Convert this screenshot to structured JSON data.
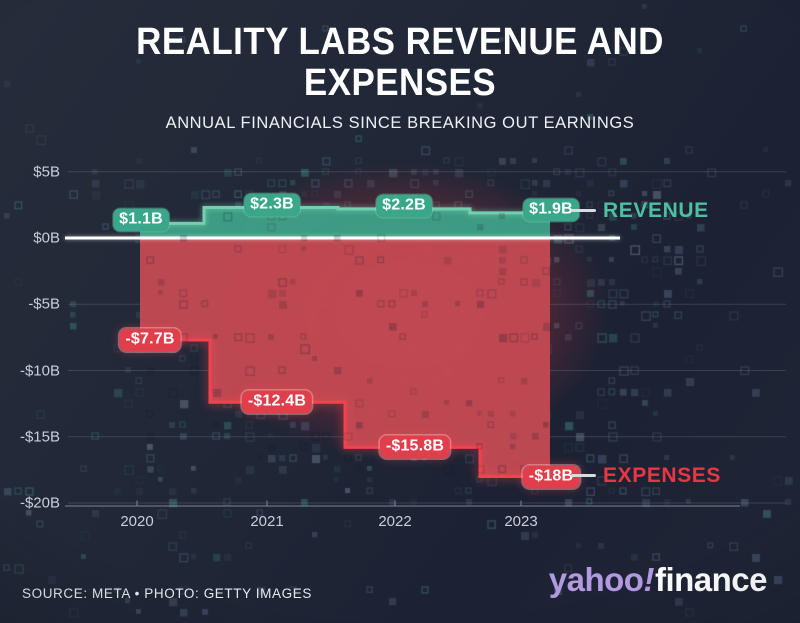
{
  "header": {
    "title_line1": "REALITY LABS REVENUE AND",
    "title_line2": "EXPENSES",
    "subtitle": "ANNUAL FINANCIALS SINCE BREAKING OUT EARNINGS"
  },
  "chart_data": {
    "type": "area",
    "variant": "step",
    "title": "REALITY LABS REVENUE AND EXPENSES",
    "subtitle": "ANNUAL FINANCIALS SINCE BREAKING OUT EARNINGS",
    "categories": [
      "2020",
      "2021",
      "2022",
      "2023"
    ],
    "series": [
      {
        "name": "REVENUE",
        "values": [
          1.1,
          2.3,
          2.2,
          1.9
        ],
        "point_labels": [
          "$1.1B",
          "$2.3B",
          "$2.2B",
          "$1.9B"
        ],
        "fill_color": "#3f9f86",
        "edge_color": "#74cfae",
        "label_bg_color": "#3aa78b",
        "name_color": "#4cc0a0"
      },
      {
        "name": "EXPENSES",
        "values": [
          -7.7,
          -12.4,
          -15.8,
          -18.0
        ],
        "point_labels": [
          "-$7.7B",
          "-$12.4B",
          "-$15.8B",
          "-$18B"
        ],
        "fill_color": "#c34a53",
        "edge_color": "#f3424e",
        "label_bg_color": "#e13e4b",
        "name_color": "#ea3642"
      }
    ],
    "y_tick_labels": [
      "$5B",
      "$0B",
      "-$5B",
      "-$10B",
      "-$15B",
      "-$20B"
    ],
    "y_tick_values": [
      5,
      0,
      -5,
      -10,
      -15,
      -20
    ],
    "ylim": [
      -21,
      6
    ],
    "unit": "billions USD",
    "grid": true,
    "zero_line_color": "#ffffff",
    "legend_position": "inline-right"
  },
  "footer": {
    "source": "SOURCE: META • PHOTO: GETTY IMAGES",
    "logo": {
      "yahoo": "yahoo",
      "bang": "!",
      "finance": "finance",
      "brand_color": "#b39ae0"
    }
  }
}
